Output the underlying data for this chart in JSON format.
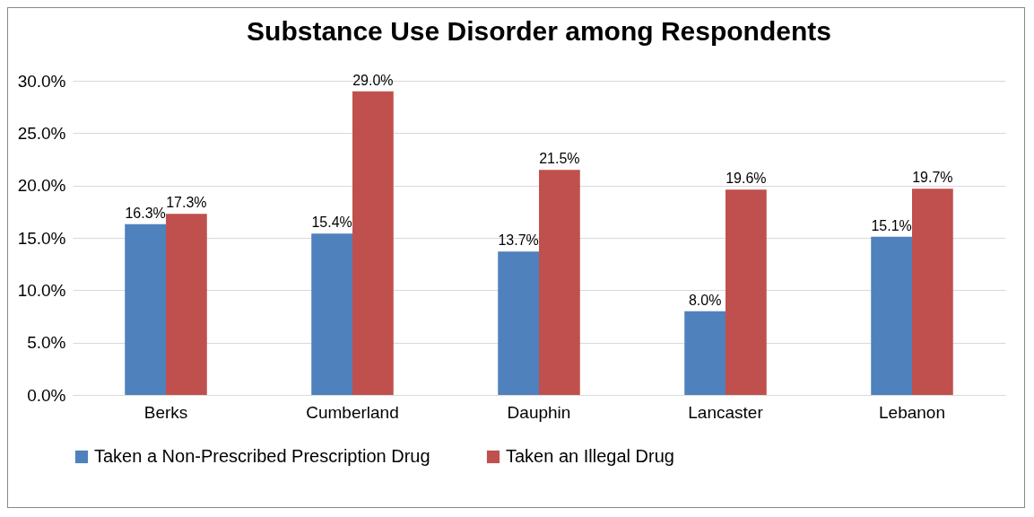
{
  "chart_data": {
    "type": "bar",
    "title": "Substance Use Disorder among Respondents",
    "categories": [
      "Berks",
      "Cumberland",
      "Dauphin",
      "Lancaster",
      "Lebanon"
    ],
    "series": [
      {
        "name": "Taken a Non-Prescribed Prescription Drug",
        "color": "#4f81bd",
        "values": [
          16.3,
          15.4,
          13.7,
          8.0,
          15.1
        ],
        "value_labels": [
          "16.3%",
          "15.4%",
          "13.7%",
          "8.0%",
          "15.1%"
        ]
      },
      {
        "name": "Taken an Illegal Drug",
        "color": "#c0504d",
        "values": [
          17.3,
          29.0,
          21.5,
          19.6,
          19.7
        ],
        "value_labels": [
          "17.3%",
          "29.0%",
          "21.5%",
          "19.6%",
          "19.7%"
        ]
      }
    ],
    "ylim": [
      0,
      30
    ],
    "yticks": [
      {
        "value": 0,
        "label": "0.0%"
      },
      {
        "value": 5,
        "label": "5.0%"
      },
      {
        "value": 10,
        "label": "10.0%"
      },
      {
        "value": 15,
        "label": "15.0%"
      },
      {
        "value": 20,
        "label": "20.0%"
      },
      {
        "value": 25,
        "label": "25.0%"
      },
      {
        "value": 30,
        "label": "30.0%"
      }
    ],
    "grid": "y",
    "legend": "bottom"
  }
}
